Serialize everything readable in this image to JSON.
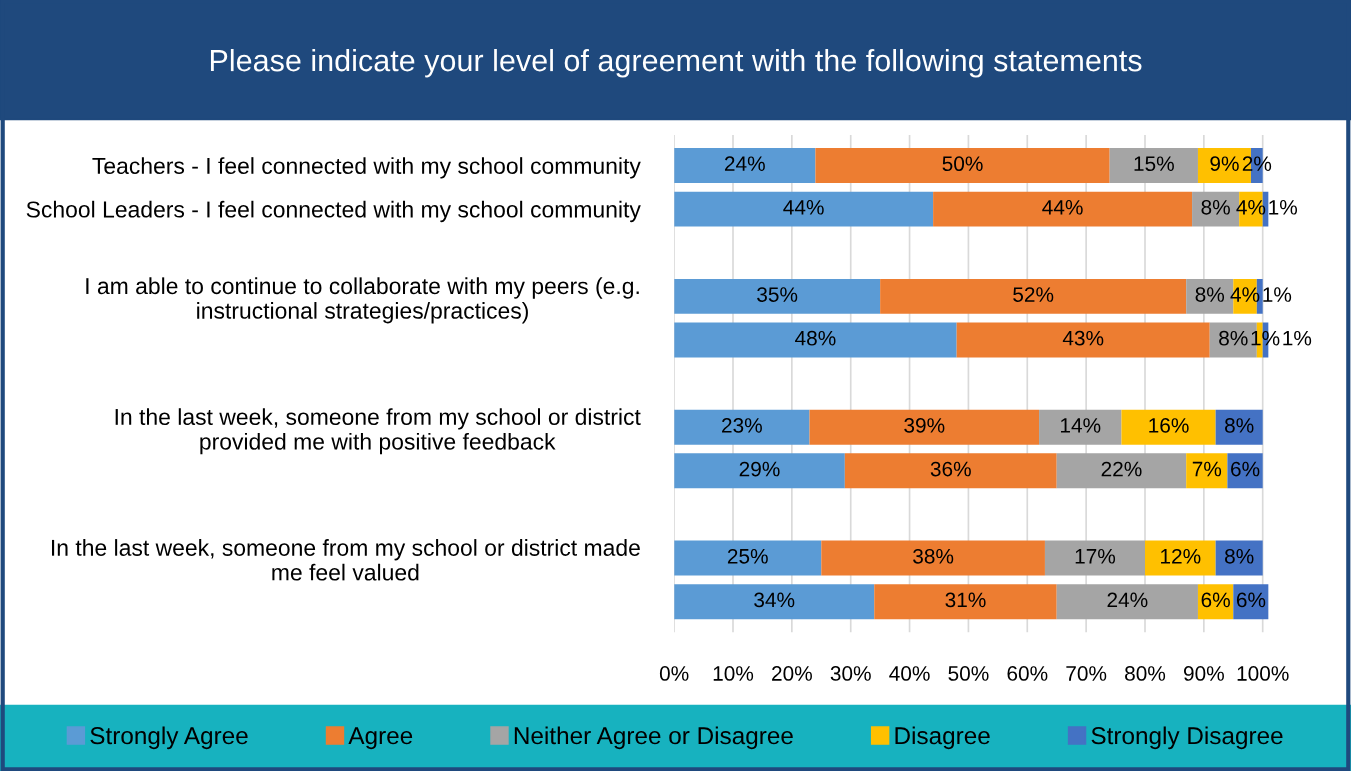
{
  "chart_data": {
    "type": "bar",
    "orientation": "horizontal",
    "stacked": true,
    "title": "Please indicate your level of agreement with the following statements",
    "categories": [
      "Teachers - I feel connected with my school community",
      "School Leaders - I feel connected with my school community",
      "I am able to continue to collaborate with my peers (e.g.\ninstructional strategies/practices)",
      null,
      "In the last week, someone from my school or district\nprovided me with positive feedback",
      null,
      "In the last week, someone from my school or district made\nme feel valued",
      null
    ],
    "series": [
      {
        "name": "Strongly Agree",
        "color": "#5b9bd5",
        "values": [
          24,
          44,
          35,
          48,
          23,
          29,
          25,
          34
        ],
        "value_labels": [
          "24%",
          "44%",
          "35%",
          "48%",
          "23%",
          "29%",
          "25%",
          "34%"
        ]
      },
      {
        "name": "Agree",
        "color": "#ed7d31",
        "values": [
          50,
          44,
          52,
          43,
          39,
          36,
          38,
          31
        ],
        "value_labels": [
          "50%",
          "44%",
          "52%",
          "43%",
          "39%",
          "36%",
          "38%",
          "31%"
        ]
      },
      {
        "name": "Neither Agree or Disagree",
        "color": "#a5a5a5",
        "values": [
          15,
          8,
          8,
          8,
          14,
          22,
          17,
          24
        ],
        "value_labels": [
          "15%",
          "8%",
          "8%",
          "8%",
          "14%",
          "22%",
          "17%",
          "24%"
        ]
      },
      {
        "name": "Disagree",
        "color": "#ffc000",
        "values": [
          9,
          4,
          4,
          1,
          16,
          7,
          12,
          6
        ],
        "value_labels": [
          "9%",
          "4%",
          "4%",
          "1%",
          "16%",
          "7%",
          "12%",
          "6%"
        ]
      },
      {
        "name": "Strongly Disagree",
        "color": "#4472c4",
        "values": [
          2,
          1,
          1,
          1,
          8,
          6,
          8,
          6
        ],
        "value_labels": [
          "2%",
          "1%",
          "1%",
          "1%",
          "8%",
          "6%",
          "8%",
          "6%"
        ]
      }
    ],
    "xlim": [
      0,
      101
    ],
    "xticks": [
      {
        "value": 0,
        "label": "0%"
      },
      {
        "value": 10,
        "label": "10%"
      },
      {
        "value": 20,
        "label": "20%"
      },
      {
        "value": 30,
        "label": "30%"
      },
      {
        "value": 40,
        "label": "40%"
      },
      {
        "value": 50,
        "label": "50%"
      },
      {
        "value": 60,
        "label": "60%"
      },
      {
        "value": 70,
        "label": "70%"
      },
      {
        "value": 80,
        "label": "80%"
      },
      {
        "value": 90,
        "label": "90%"
      },
      {
        "value": 100,
        "label": "100%"
      }
    ],
    "grid": "x",
    "legend": "bottom"
  }
}
